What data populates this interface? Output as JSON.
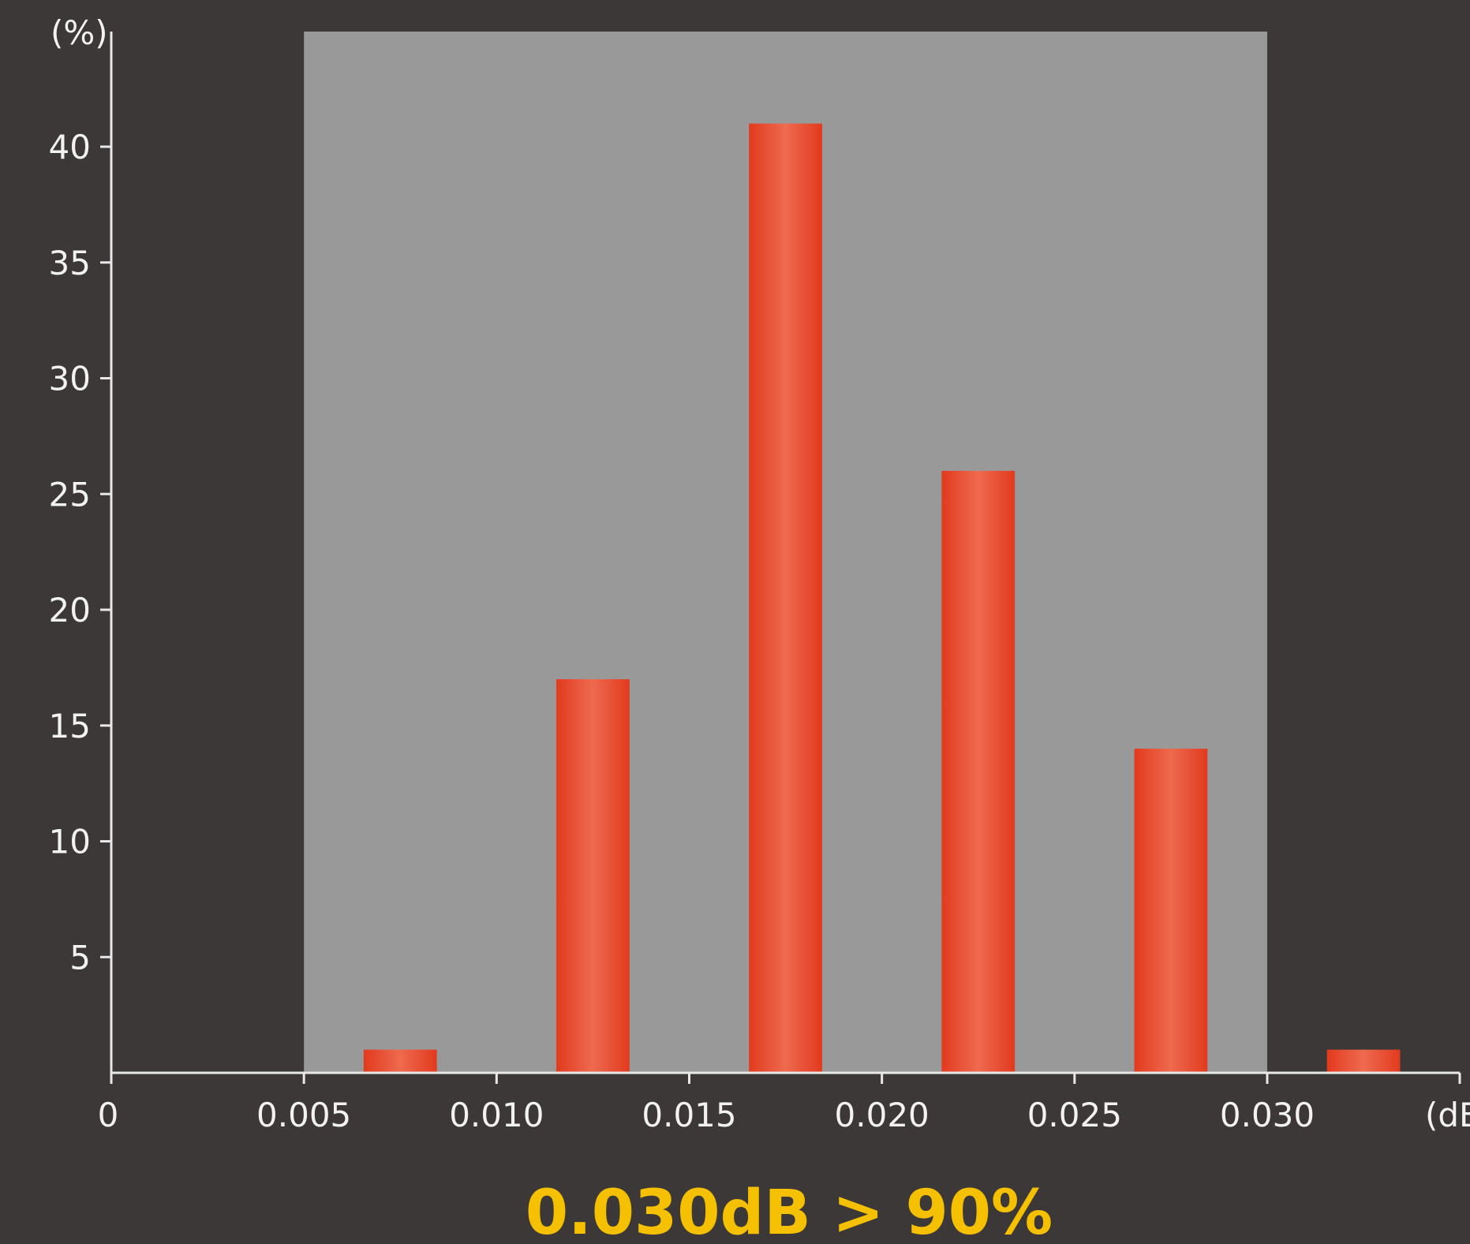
{
  "chart_data": {
    "type": "bar",
    "title": "",
    "caption": "0.030dB > 90%",
    "ylabel": "(%)",
    "xlabel": "(dB)",
    "xlim": [
      0,
      0.035
    ],
    "ylim": [
      0,
      45
    ],
    "x_ticks": [
      "0",
      "0.005",
      "0.010",
      "0.015",
      "0.020",
      "0.025",
      "0.030"
    ],
    "y_ticks": [
      "5",
      "10",
      "15",
      "20",
      "25",
      "30",
      "35",
      "40"
    ],
    "x_tick_values": [
      0,
      0.005,
      0.01,
      0.015,
      0.02,
      0.025,
      0.03
    ],
    "y_tick_values": [
      5,
      10,
      15,
      20,
      25,
      30,
      35,
      40
    ],
    "shaded_region": {
      "x_range": [
        0.005,
        0.03
      ],
      "color": "#999999"
    },
    "bars": [
      {
        "x": 0.0075,
        "value": 1
      },
      {
        "x": 0.0125,
        "value": 17
      },
      {
        "x": 0.0175,
        "value": 41
      },
      {
        "x": 0.0225,
        "value": 26
      },
      {
        "x": 0.0275,
        "value": 14
      },
      {
        "x": 0.0325,
        "value": 1
      }
    ],
    "bar_width": 0.0019,
    "grid": false,
    "legend": "none",
    "colors": {
      "background": "#3b3837",
      "axis": "#e8e8e8",
      "bar_edge": "#e23a1e",
      "bar_center": "#ee6a4f",
      "caption": "#f5c000",
      "tick_text": "#f2f2f2"
    }
  }
}
